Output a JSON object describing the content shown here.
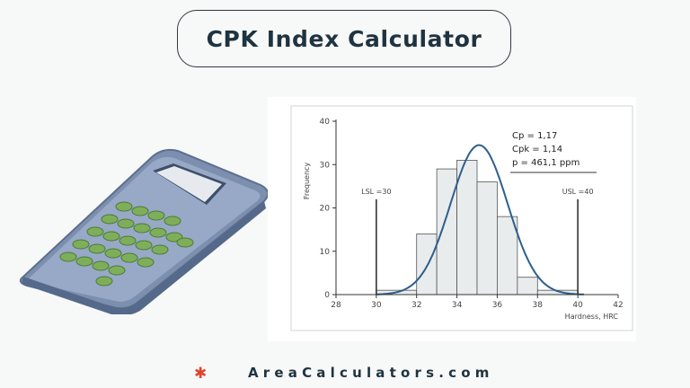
{
  "header": {
    "title": "CPK Index Calculator"
  },
  "illustration": {
    "name": "calculator-icon"
  },
  "chart_data": {
    "type": "bar",
    "bins": [
      {
        "from": 30,
        "to": 32,
        "value": 1
      },
      {
        "from": 32,
        "to": 33,
        "value": 14
      },
      {
        "from": 33,
        "to": 34,
        "value": 29
      },
      {
        "from": 34,
        "to": 35,
        "value": 31
      },
      {
        "from": 35,
        "to": 36,
        "value": 26
      },
      {
        "from": 36,
        "to": 37,
        "value": 18
      },
      {
        "from": 37,
        "to": 38,
        "value": 4
      },
      {
        "from": 38,
        "to": 40,
        "value": 1
      }
    ],
    "curve": {
      "kind": "normal",
      "mean": 35.1,
      "sd": 1.42,
      "peak": 34.5
    },
    "xlabel": "Hardness, HRC",
    "ylabel": "Frequency",
    "xlim": [
      28,
      42
    ],
    "ylim": [
      0,
      40
    ],
    "xticks": [
      28,
      30,
      32,
      34,
      36,
      38,
      40,
      42
    ],
    "yticks": [
      0,
      10,
      20,
      30,
      40
    ],
    "lines": [
      {
        "label": "LSL =30",
        "x": 30
      },
      {
        "label": "USL =40",
        "x": 40
      }
    ],
    "stats": [
      "Cp = 1,17",
      "Cpk = 1,14",
      "p = 461,1 ppm"
    ],
    "colors": {
      "bars": "#e9eced",
      "curve": "#2d5e8e",
      "axis": "#333333"
    }
  },
  "footer": {
    "site": "AreaCalculators.com",
    "bullet": "✱"
  }
}
